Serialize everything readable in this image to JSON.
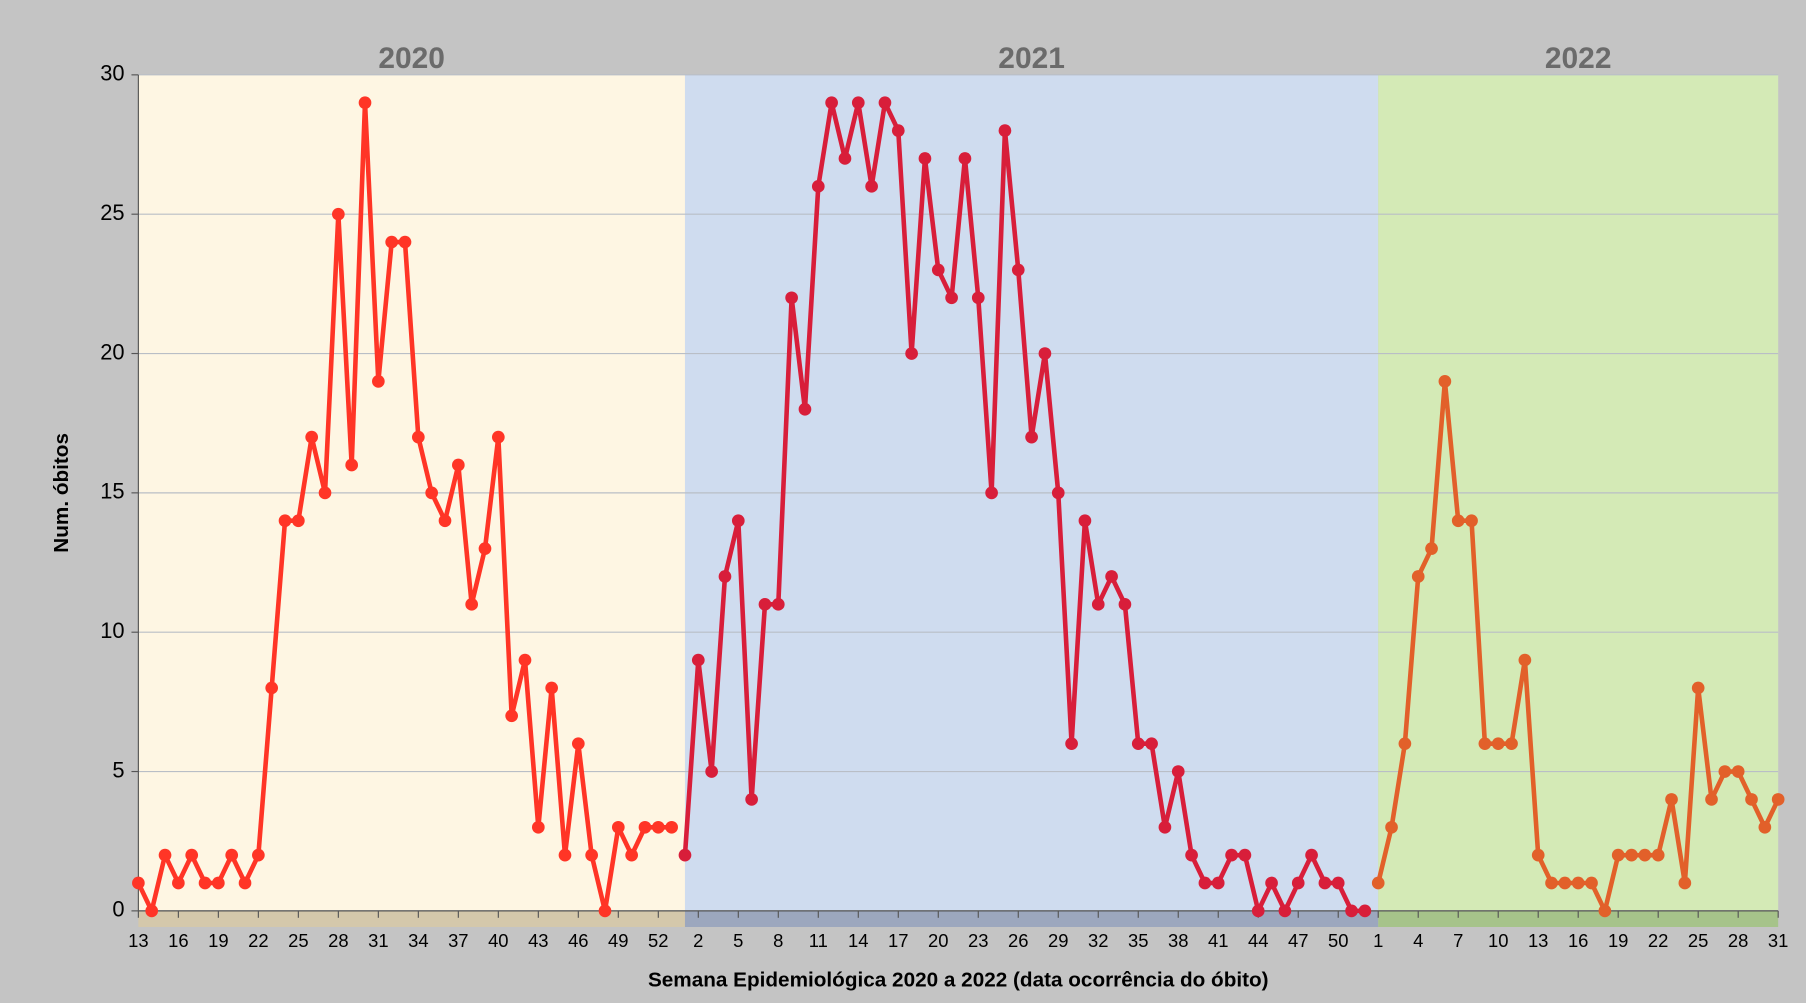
{
  "chart_data": {
    "type": "line",
    "x_label": "Semana Epidemiológica 2020 a 2022 (data ocorrência do óbito)",
    "y_label": "Num. óbitos",
    "ylim": [
      0,
      30
    ],
    "yticks": [
      0,
      5,
      10,
      15,
      20,
      25,
      30
    ],
    "grid": true,
    "categories": [
      "13",
      null,
      null,
      "16",
      null,
      null,
      "19",
      null,
      null,
      "22",
      null,
      null,
      "25",
      null,
      null,
      "28",
      null,
      null,
      "31",
      null,
      null,
      "34",
      null,
      null,
      "37",
      null,
      null,
      "40",
      null,
      null,
      "43",
      null,
      null,
      "46",
      null,
      null,
      "49",
      null,
      null,
      "52",
      null,
      null,
      "2",
      null,
      null,
      "5",
      null,
      null,
      "8",
      null,
      null,
      "11",
      null,
      null,
      "14",
      null,
      null,
      "17",
      null,
      null,
      "20",
      null,
      null,
      "23",
      null,
      null,
      "26",
      null,
      null,
      "29",
      null,
      null,
      "32",
      null,
      null,
      "35",
      null,
      null,
      "38",
      null,
      null,
      "41",
      null,
      null,
      "44",
      null,
      null,
      "47",
      null,
      null,
      "50",
      null,
      null,
      "1",
      null,
      null,
      "4",
      null,
      null,
      "7",
      null,
      null,
      "10",
      null,
      null,
      "13",
      null,
      null,
      "16",
      null,
      null,
      "19",
      null,
      null,
      "22",
      null,
      null,
      "25",
      null,
      null,
      "28",
      null,
      null,
      "31"
    ],
    "series": [
      {
        "name": "2020",
        "color": "#ff3526",
        "background": "#fef6e3",
        "band": "#d4c8ab",
        "values": [
          1,
          0,
          2,
          1,
          2,
          1,
          1,
          2,
          1,
          2,
          8,
          14,
          14,
          17,
          15,
          25,
          16,
          29,
          19,
          24,
          24,
          17,
          15,
          14,
          16,
          11,
          13,
          17,
          7,
          9,
          3,
          8,
          2,
          6,
          2,
          0,
          3,
          2,
          3,
          3,
          3,
          null,
          null,
          null,
          null,
          null,
          null,
          null,
          null,
          null,
          null,
          null,
          null,
          null,
          null,
          null,
          null,
          null,
          null,
          null,
          null,
          null,
          null,
          null,
          null,
          null,
          null,
          null,
          null,
          null,
          null,
          null,
          null,
          null,
          null,
          null,
          null,
          null,
          null,
          null,
          null,
          null,
          null,
          null,
          null,
          null,
          null,
          null,
          null,
          null,
          null,
          null,
          null,
          null,
          null,
          null,
          null,
          null,
          null,
          null,
          null,
          null,
          null,
          null,
          null,
          null,
          null,
          null,
          null,
          null,
          null,
          null,
          null,
          null,
          null,
          null,
          null,
          null,
          null,
          null,
          null,
          null,
          null,
          null
        ]
      },
      {
        "name": "2021",
        "color": "#d81e3a",
        "background": "#cfdcef",
        "band": "#9ca7be",
        "values": [
          null,
          null,
          null,
          null,
          null,
          null,
          null,
          null,
          null,
          null,
          null,
          null,
          null,
          null,
          null,
          null,
          null,
          null,
          null,
          null,
          null,
          null,
          null,
          null,
          null,
          null,
          null,
          null,
          null,
          null,
          null,
          null,
          null,
          null,
          null,
          null,
          null,
          null,
          null,
          null,
          null,
          2,
          9,
          5,
          12,
          14,
          4,
          11,
          11,
          22,
          18,
          26,
          29,
          27,
          29,
          26,
          29,
          28,
          20,
          27,
          23,
          22,
          27,
          22,
          15,
          28,
          23,
          17,
          20,
          15,
          6,
          14,
          11,
          12,
          11,
          6,
          6,
          3,
          5,
          2,
          1,
          1,
          2,
          2,
          0,
          1,
          0,
          1,
          2,
          1,
          1,
          0,
          0,
          null,
          null,
          null,
          null,
          null,
          null,
          null,
          null,
          null,
          null,
          null,
          null,
          null,
          null,
          null,
          null,
          null,
          null,
          null,
          null,
          null,
          null,
          null,
          null,
          null,
          null,
          null,
          null,
          null,
          null,
          null
        ]
      },
      {
        "name": "2022",
        "color": "#e2602a",
        "background": "#d4eab6",
        "band": "#a6c38a",
        "values": [
          null,
          null,
          null,
          null,
          null,
          null,
          null,
          null,
          null,
          null,
          null,
          null,
          null,
          null,
          null,
          null,
          null,
          null,
          null,
          null,
          null,
          null,
          null,
          null,
          null,
          null,
          null,
          null,
          null,
          null,
          null,
          null,
          null,
          null,
          null,
          null,
          null,
          null,
          null,
          null,
          null,
          null,
          null,
          null,
          null,
          null,
          null,
          null,
          null,
          null,
          null,
          null,
          null,
          null,
          null,
          null,
          null,
          null,
          null,
          null,
          null,
          null,
          null,
          null,
          null,
          null,
          null,
          null,
          null,
          null,
          null,
          null,
          null,
          null,
          null,
          null,
          null,
          null,
          null,
          null,
          null,
          null,
          null,
          null,
          null,
          null,
          null,
          null,
          null,
          null,
          null,
          null,
          null,
          1,
          3,
          6,
          12,
          13,
          19,
          14,
          14,
          6,
          6,
          6,
          9,
          2,
          1,
          1,
          1,
          1,
          0,
          2,
          2,
          2,
          2,
          4,
          1,
          8,
          4,
          5,
          5,
          4,
          3,
          4
        ]
      }
    ]
  }
}
